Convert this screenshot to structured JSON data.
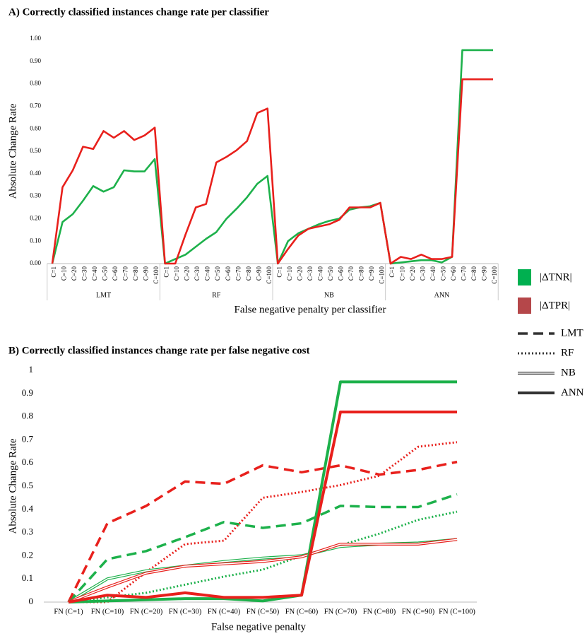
{
  "chart_data": [
    {
      "type": "line",
      "title": "A) Correctly classified instances change rate per classifier",
      "x_label": "False negative penalty per classifier",
      "y_label": "Absolute Change Rate",
      "groups": [
        "LMT",
        "RF",
        "NB",
        "ANN"
      ],
      "categories": [
        "C=1",
        "C=10",
        "C=20",
        "C=30",
        "C=40",
        "C=50",
        "C=60",
        "C=70",
        "C=80",
        "C=90",
        "C=100",
        "C=1",
        "C=10",
        "C=20",
        "C=30",
        "C=40",
        "C=50",
        "C=60",
        "C=70",
        "C=80",
        "C=90",
        "C=100",
        "C=1",
        "C=10",
        "C=20",
        "C=30",
        "C=40",
        "C=50",
        "C=60",
        "C=70",
        "C=80",
        "C=90",
        "C=100",
        "C=1",
        "C=10",
        "C=20",
        "C=30",
        "C=40",
        "C=50",
        "C=60",
        "C=70",
        "C=80",
        "C=90",
        "C=100"
      ],
      "ylim": [
        0,
        1
      ],
      "yticks": [
        {
          "value": 0,
          "label": "0.00"
        },
        {
          "value": 0.1,
          "label": "0.10"
        },
        {
          "value": 0.2,
          "label": "0.20"
        },
        {
          "value": 0.3,
          "label": "0.30"
        },
        {
          "value": 0.4,
          "label": "0.40"
        },
        {
          "value": 0.5,
          "label": "0.50"
        },
        {
          "value": 0.6,
          "label": "0.60"
        },
        {
          "value": 0.7,
          "label": "0.70"
        },
        {
          "value": 0.8,
          "label": "0.80"
        },
        {
          "value": 0.9,
          "label": "0.90"
        },
        {
          "value": 1,
          "label": "1.00"
        }
      ],
      "grid": false,
      "series": [
        {
          "name": "|ΔTNR|",
          "color": "#1db14b",
          "legend_color": "#00b050",
          "values": [
            0,
            0.185,
            0.22,
            0.28,
            0.345,
            0.32,
            0.34,
            0.415,
            0.41,
            0.41,
            0.465,
            0,
            0.02,
            0.04,
            0.075,
            0.11,
            0.14,
            0.2,
            0.245,
            0.295,
            0.355,
            0.39,
            0,
            0.1,
            0.135,
            0.155,
            0.175,
            0.19,
            0.2,
            0.24,
            0.25,
            0.255,
            0.27,
            0,
            0.005,
            0.01,
            0.015,
            0.015,
            0.005,
            0.03,
            0.95,
            0.95,
            0.95,
            0.95
          ]
        },
        {
          "name": "|ΔTPR|",
          "color": "#e8201c",
          "legend_color": "#b5474a",
          "values": [
            0,
            0.34,
            0.415,
            0.52,
            0.51,
            0.59,
            0.56,
            0.59,
            0.55,
            0.57,
            0.605,
            0,
            0,
            0.13,
            0.25,
            0.265,
            0.45,
            0.475,
            0.505,
            0.545,
            0.67,
            0.69,
            0,
            0.065,
            0.125,
            0.155,
            0.165,
            0.175,
            0.195,
            0.25,
            0.25,
            0.25,
            0.27,
            0,
            0.03,
            0.02,
            0.04,
            0.02,
            0.02,
            0.03,
            0.82,
            0.82,
            0.82,
            0.82
          ]
        }
      ]
    },
    {
      "type": "line",
      "title": "B) Correctly classified instances change rate per false negative cost",
      "x_label": "False negative penalty",
      "y_label": "Absolute Change Rate",
      "categories": [
        "FN (C=1)",
        "FN (C=10)",
        "FN (C=20)",
        "FN (C=30)",
        "FN (C=40)",
        "FN (C=50)",
        "FN (C=60)",
        "FN (C=70)",
        "FN (C=80)",
        "FN (C=90)",
        "FN (C=100)"
      ],
      "ylim": [
        0,
        1
      ],
      "yticks": [
        0,
        0.1,
        0.2,
        0.3,
        0.4,
        0.5,
        0.6,
        0.7,
        0.8,
        0.9,
        1
      ],
      "grid": false,
      "line_styles": [
        {
          "label": "LMT",
          "style": "dashed"
        },
        {
          "label": "RF",
          "style": "dotted"
        },
        {
          "label": "NB",
          "style": "double"
        },
        {
          "label": "ANN",
          "style": "solid"
        }
      ],
      "series": [
        {
          "style": "dashed",
          "color": "#1db14b",
          "values": [
            0,
            0.185,
            0.22,
            0.28,
            0.345,
            0.32,
            0.34,
            0.415,
            0.41,
            0.41,
            0.465
          ]
        },
        {
          "style": "dashed",
          "color": "#e8201c",
          "values": [
            0,
            0.34,
            0.415,
            0.52,
            0.51,
            0.59,
            0.56,
            0.59,
            0.55,
            0.57,
            0.605
          ]
        },
        {
          "style": "dotted",
          "color": "#1db14b",
          "values": [
            0,
            0.02,
            0.04,
            0.075,
            0.11,
            0.14,
            0.2,
            0.245,
            0.295,
            0.355,
            0.39
          ]
        },
        {
          "style": "dotted",
          "color": "#e8201c",
          "values": [
            0,
            0,
            0.13,
            0.25,
            0.265,
            0.45,
            0.475,
            0.505,
            0.545,
            0.67,
            0.69
          ]
        },
        {
          "style": "double",
          "color": "#1db14b",
          "values": [
            0,
            0.1,
            0.135,
            0.155,
            0.175,
            0.19,
            0.2,
            0.24,
            0.25,
            0.255,
            0.27
          ]
        },
        {
          "style": "double",
          "color": "#e8201c",
          "values": [
            0,
            0.065,
            0.125,
            0.155,
            0.165,
            0.175,
            0.195,
            0.25,
            0.25,
            0.25,
            0.27
          ]
        },
        {
          "style": "solid",
          "color": "#1db14b",
          "values": [
            0,
            0.005,
            0.01,
            0.015,
            0.015,
            0.005,
            0.03,
            0.95,
            0.95,
            0.95,
            0.95
          ]
        },
        {
          "style": "solid",
          "color": "#e8201c",
          "values": [
            0,
            0.03,
            0.02,
            0.04,
            0.02,
            0.02,
            0.03,
            0.82,
            0.82,
            0.82,
            0.82
          ]
        }
      ]
    }
  ]
}
